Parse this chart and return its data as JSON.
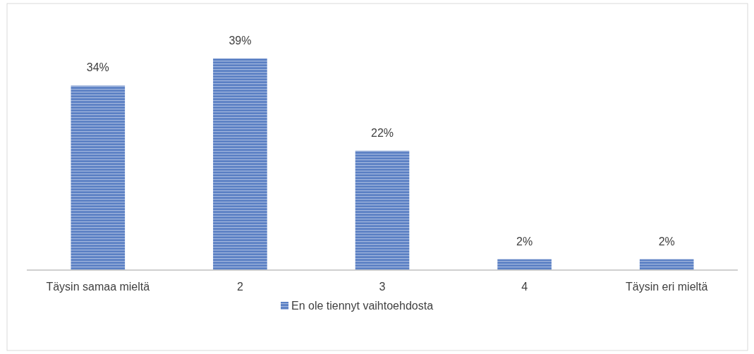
{
  "chart_data": {
    "type": "bar",
    "categories": [
      "Täysin samaa mieltä",
      "2",
      "3",
      "4",
      "Täysin eri mieltä"
    ],
    "series": [
      {
        "name": "En ole tiennyt vaihtoehdosta",
        "color": "#5b80c4",
        "values": [
          34,
          39,
          22,
          2,
          2
        ],
        "value_labels": [
          "34%",
          "39%",
          "22%",
          "2%",
          "2%"
        ]
      }
    ],
    "legend": "bottom"
  }
}
